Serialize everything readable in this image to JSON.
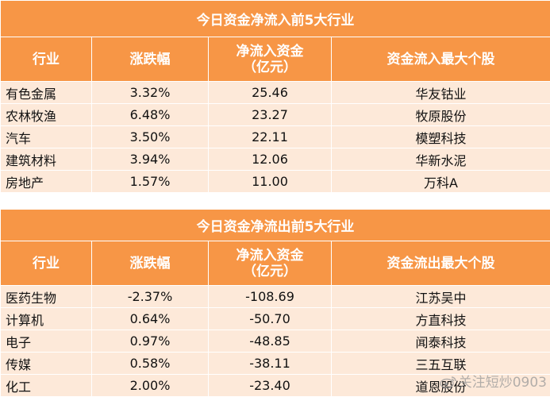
{
  "inflow": {
    "title": "今日资金净流入前5大行业",
    "headers": [
      "行业",
      "涨跌幅",
      "净流入资金\n（亿元）",
      "资金流入最大个股"
    ],
    "rows": [
      [
        "有色金属",
        "3.32%",
        "25.46",
        "华友钴业"
      ],
      [
        "农林牧渔",
        "6.48%",
        "23.27",
        "牧原股份"
      ],
      [
        "汽车",
        "3.50%",
        "22.11",
        "模塑科技"
      ],
      [
        "建筑材料",
        "3.94%",
        "12.06",
        "华新水泥"
      ],
      [
        "房地产",
        "1.57%",
        "11.00",
        "万科A"
      ]
    ]
  },
  "outflow": {
    "title": "今日资金净流出前5大行业",
    "headers": [
      "行业",
      "涨跌幅",
      "净流入资金\n（亿元）",
      "资金流出最大个股"
    ],
    "rows": [
      [
        "医药生物",
        "-2.37%",
        "-108.69",
        "江苏吴中"
      ],
      [
        "计算机",
        "0.64%",
        "-50.70",
        "方直科技"
      ],
      [
        "电子",
        "0.97%",
        "-48.85",
        "闻泰科技"
      ],
      [
        "传媒",
        "0.58%",
        "-38.11",
        "三五互联"
      ],
      [
        "化工",
        "2.00%",
        "-23.40",
        "道恩股份"
      ]
    ]
  },
  "watermark": {
    "text": "关注短炒0903",
    "icon": "weibo-icon"
  }
}
